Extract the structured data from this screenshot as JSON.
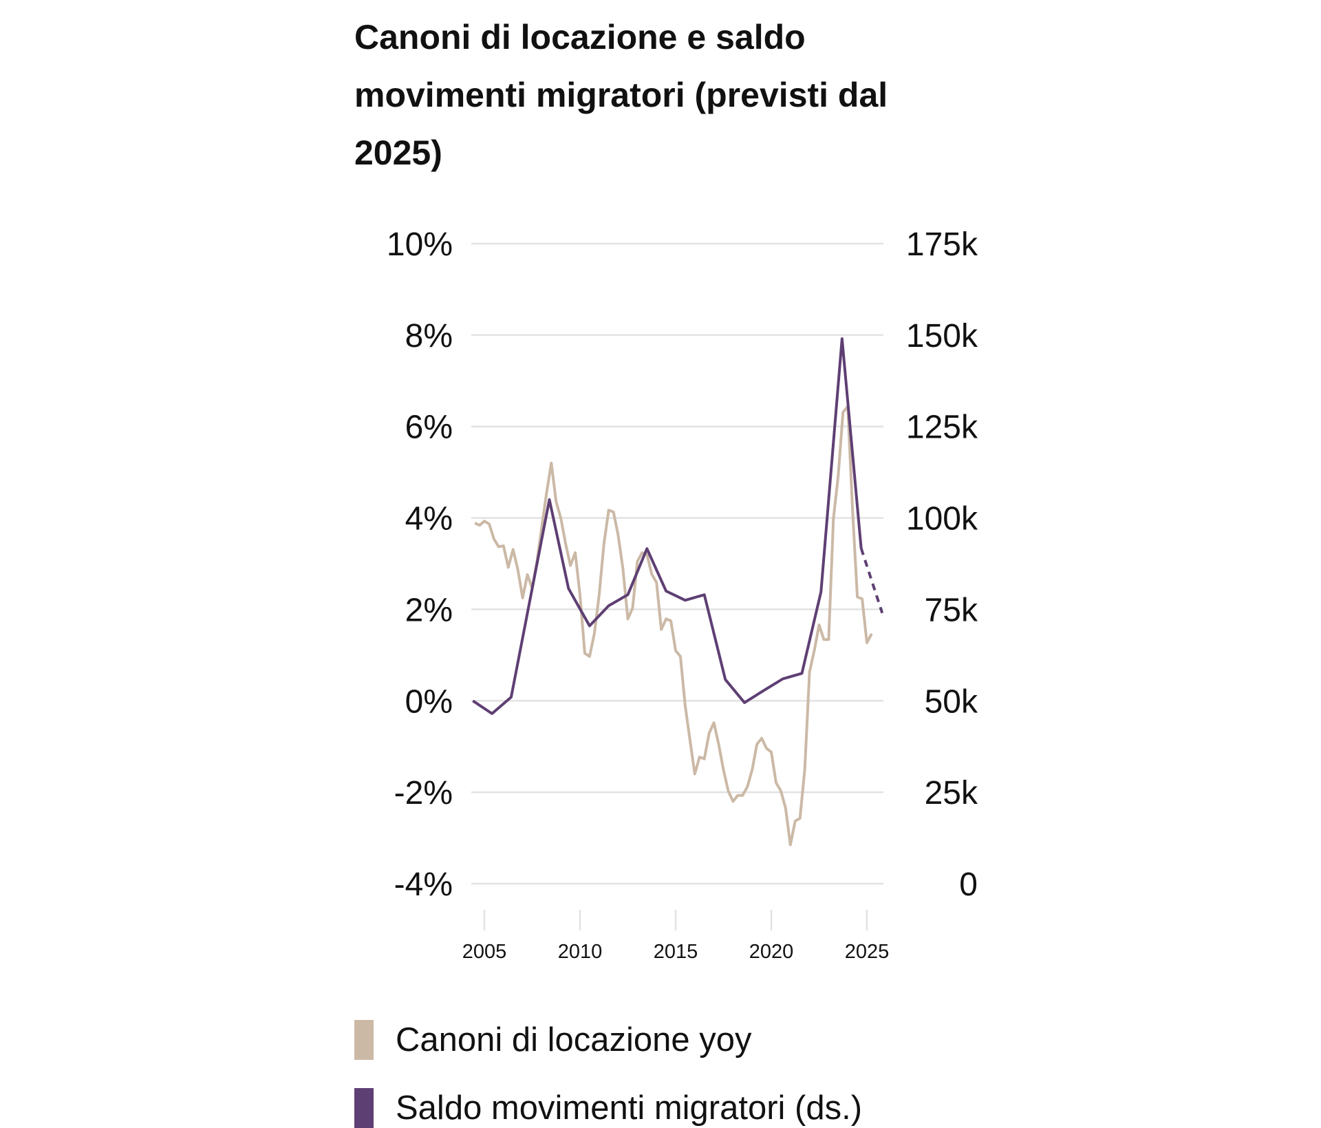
{
  "chart_data": {
    "type": "line",
    "title": "Canoni di locazione e saldo movimenti migratori (previsti dal 2025)",
    "left_axis": {
      "ticks": [
        10,
        8,
        6,
        4,
        2,
        0,
        -2,
        -4
      ],
      "tick_labels": [
        "10%",
        "8%",
        "6%",
        "4%",
        "2%",
        "0%",
        "-2%",
        "-4%"
      ],
      "ylim": [
        -4,
        10
      ]
    },
    "right_axis": {
      "ticks": [
        175,
        150,
        125,
        100,
        75,
        50,
        25,
        0
      ],
      "tick_labels": [
        "175k",
        "150k",
        "125k",
        "100k",
        "75k",
        "50k",
        "25k",
        "0"
      ],
      "ylim": [
        0,
        175
      ]
    },
    "x_axis": {
      "ticks": [
        2005,
        2010,
        2015,
        2020,
        2025
      ],
      "tick_labels": [
        "2005",
        "2010",
        "2015",
        "2020",
        "2025"
      ]
    },
    "grid": "horizontal",
    "legend_position": "bottom",
    "series": [
      {
        "name": "Canoni di locazione yoy",
        "axis": "left",
        "color": "#cbb9a6",
        "x": [
          2004.5,
          2004.75,
          2005,
          2005.25,
          2005.5,
          2005.75,
          2006,
          2006.25,
          2006.5,
          2006.75,
          2007,
          2007.25,
          2007.5,
          2007.75,
          2008,
          2008.25,
          2008.5,
          2008.75,
          2009,
          2009.25,
          2009.5,
          2009.75,
          2010,
          2010.25,
          2010.5,
          2010.75,
          2011,
          2011.25,
          2011.5,
          2011.75,
          2012,
          2012.25,
          2012.5,
          2012.75,
          2013,
          2013.25,
          2013.5,
          2013.75,
          2014,
          2014.25,
          2014.5,
          2014.75,
          2015,
          2015.25,
          2015.5,
          2015.75,
          2016,
          2016.25,
          2016.5,
          2016.75,
          2017,
          2017.25,
          2017.5,
          2017.75,
          2018,
          2018.25,
          2018.5,
          2018.75,
          2019,
          2019.25,
          2019.5,
          2019.75,
          2020,
          2020.25,
          2020.5,
          2020.75,
          2021,
          2021.25,
          2021.5,
          2021.75,
          2022,
          2022.25,
          2022.5,
          2022.75,
          2023,
          2023.25,
          2023.5,
          2023.75,
          2024,
          2024.25,
          2024.5,
          2024.75,
          2025,
          2025.25
        ],
        "values": [
          3.89,
          3.84,
          3.93,
          3.87,
          3.54,
          3.37,
          3.39,
          2.92,
          3.31,
          2.87,
          2.25,
          2.76,
          2.46,
          3.05,
          3.8,
          4.54,
          5.2,
          4.36,
          3.99,
          3.43,
          2.96,
          3.24,
          2.31,
          1.04,
          0.97,
          1.47,
          2.31,
          3.43,
          4.17,
          4.13,
          3.61,
          2.87,
          1.79,
          2.03,
          3.05,
          3.24,
          3.2,
          2.77,
          2.59,
          1.56,
          1.79,
          1.75,
          1.1,
          0.97,
          -0.11,
          -0.86,
          -1.6,
          -1.23,
          -1.27,
          -0.71,
          -0.48,
          -0.95,
          -1.51,
          -1.97,
          -2.2,
          -2.07,
          -2.07,
          -1.88,
          -1.51,
          -0.95,
          -0.82,
          -1.04,
          -1.12,
          -1.79,
          -1.97,
          -2.35,
          -3.15,
          -2.63,
          -2.57,
          -1.51,
          0.63,
          1.1,
          1.66,
          1.34,
          1.34,
          3.99,
          4.92,
          6.31,
          6.44,
          4.17,
          2.27,
          2.23,
          1.27,
          1.47
        ]
      },
      {
        "name": "Saldo movimenti migratori (ds.)",
        "axis": "right",
        "color": "#5e3f73",
        "x": [
          2004.4,
          2005.4,
          2006.4,
          2008.4,
          2009.4,
          2010.5,
          2011.5,
          2012.5,
          2013.5,
          2014.5,
          2015.5,
          2016.5,
          2017.6,
          2018.6,
          2019.6,
          2020.6,
          2021.6,
          2022.6,
          2023.7,
          2024.7,
          2025.8
        ],
        "values": [
          50,
          46.5,
          51,
          105,
          80.7,
          70.5,
          76,
          79,
          91.6,
          80,
          77.5,
          79,
          55.8,
          49.5,
          52.8,
          56,
          57.5,
          79.8,
          149,
          91.7,
          74
        ],
        "forecast_from": 2024.7
      }
    ]
  }
}
